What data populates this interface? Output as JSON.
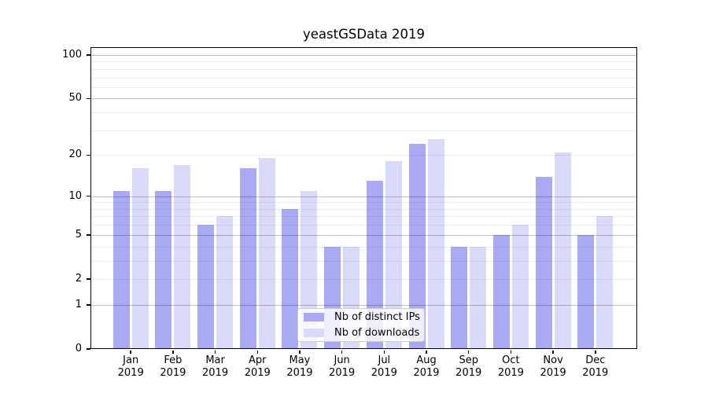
{
  "colors": {
    "background": "#ffffff",
    "axis": "#000000",
    "grid_major": "rgba(0,0,0,0.24)",
    "grid_minor": "rgba(0,0,0,0.07)",
    "distinct_ips": "#a9a9f4",
    "downloads": "#d9d9fa"
  },
  "chart_data": {
    "type": "bar",
    "title": "yeastGSData 2019",
    "categories": [
      "Jan",
      "Feb",
      "Mar",
      "Apr",
      "May",
      "Jun",
      "Jul",
      "Aug",
      "Sep",
      "Oct",
      "Nov",
      "Dec"
    ],
    "category_year": "2019",
    "series": [
      {
        "name": "Nb of distinct IPs",
        "color": "#a9a9f4",
        "values": [
          11,
          11,
          6,
          16,
          8,
          4,
          13,
          24,
          4,
          5,
          14,
          5
        ]
      },
      {
        "name": "Nb of downloads",
        "color": "#d9d9fa",
        "values": [
          16,
          17,
          7,
          19,
          11,
          4,
          18,
          26,
          4,
          6,
          21,
          7
        ]
      }
    ],
    "yscale": "log1p",
    "yticks": [
      0,
      1,
      2,
      5,
      10,
      20,
      50,
      100
    ],
    "ylim": [
      0,
      100
    ],
    "grid": "horizontal",
    "grid_minor_values": [
      2,
      3,
      4,
      6,
      7,
      8,
      9,
      20,
      30,
      40,
      60,
      70,
      80,
      90
    ],
    "grid_major_values": [
      1,
      5,
      10,
      50,
      100
    ],
    "legend_position": "bottom-center"
  }
}
